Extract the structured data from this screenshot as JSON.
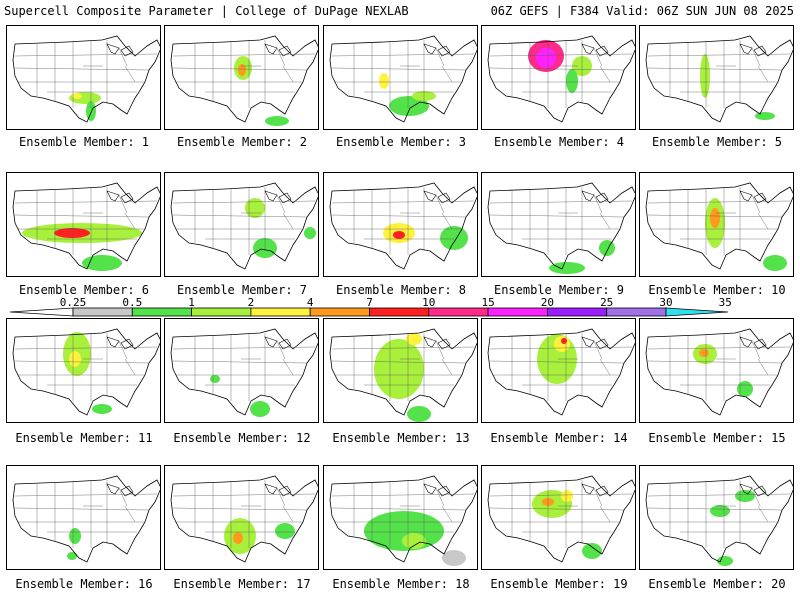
{
  "header": {
    "title_left": "Supercell Composite Parameter | College of DuPage NEXLAB",
    "title_right": "06Z GEFS | F384 Valid: 06Z SUN JUN 08 2025"
  },
  "legend": {
    "thresholds": [
      "0.25",
      "0.5",
      "1",
      "2",
      "4",
      "7",
      "10",
      "15",
      "20",
      "25",
      "30",
      "35"
    ],
    "colors": [
      "#c8c8c8",
      "#54e24a",
      "#a8f03c",
      "#fff23c",
      "#ff9a1e",
      "#ff2020",
      "#ff2a8a",
      "#ff22ff",
      "#9a1eff",
      "#a070e8",
      "#30e0f0"
    ]
  },
  "members": [
    {
      "label": "Ensemble Member: 1",
      "blobs": [
        {
          "cx": 78,
          "cy": 72,
          "rx": 16,
          "ry": 6,
          "c": 2
        },
        {
          "cx": 84,
          "cy": 85,
          "rx": 5,
          "ry": 10,
          "c": 1
        },
        {
          "cx": 70,
          "cy": 70,
          "rx": 5,
          "ry": 3,
          "c": 3
        }
      ]
    },
    {
      "label": "Ensemble Member: 2",
      "blobs": [
        {
          "cx": 78,
          "cy": 42,
          "rx": 9,
          "ry": 12,
          "c": 2
        },
        {
          "cx": 77,
          "cy": 44,
          "rx": 4,
          "ry": 6,
          "c": 4
        },
        {
          "cx": 112,
          "cy": 95,
          "rx": 12,
          "ry": 5,
          "c": 1
        }
      ]
    },
    {
      "label": "Ensemble Member: 3",
      "blobs": [
        {
          "cx": 60,
          "cy": 55,
          "rx": 5,
          "ry": 8,
          "c": 3
        },
        {
          "cx": 85,
          "cy": 80,
          "rx": 20,
          "ry": 10,
          "c": 1
        },
        {
          "cx": 100,
          "cy": 70,
          "rx": 12,
          "ry": 5,
          "c": 2
        }
      ]
    },
    {
      "label": "Ensemble Member: 4",
      "blobs": [
        {
          "cx": 64,
          "cy": 30,
          "rx": 18,
          "ry": 16,
          "c": 6
        },
        {
          "cx": 64,
          "cy": 32,
          "rx": 10,
          "ry": 10,
          "c": 7
        },
        {
          "cx": 100,
          "cy": 40,
          "rx": 10,
          "ry": 10,
          "c": 2
        },
        {
          "cx": 90,
          "cy": 55,
          "rx": 6,
          "ry": 12,
          "c": 1
        }
      ]
    },
    {
      "label": "Ensemble Member: 5",
      "blobs": [
        {
          "cx": 65,
          "cy": 50,
          "rx": 5,
          "ry": 22,
          "c": 2
        },
        {
          "cx": 125,
          "cy": 90,
          "rx": 10,
          "ry": 4,
          "c": 1
        }
      ]
    },
    {
      "label": "Ensemble Member: 6",
      "blobs": [
        {
          "cx": 75,
          "cy": 60,
          "rx": 60,
          "ry": 10,
          "c": 2
        },
        {
          "cx": 65,
          "cy": 60,
          "rx": 18,
          "ry": 5,
          "c": 5
        },
        {
          "cx": 95,
          "cy": 90,
          "rx": 20,
          "ry": 8,
          "c": 1
        }
      ]
    },
    {
      "label": "Ensemble Member: 7",
      "blobs": [
        {
          "cx": 90,
          "cy": 35,
          "rx": 10,
          "ry": 10,
          "c": 2
        },
        {
          "cx": 100,
          "cy": 75,
          "rx": 12,
          "ry": 10,
          "c": 1
        },
        {
          "cx": 145,
          "cy": 60,
          "rx": 6,
          "ry": 6,
          "c": 1
        }
      ]
    },
    {
      "label": "Ensemble Member: 8",
      "blobs": [
        {
          "cx": 75,
          "cy": 60,
          "rx": 16,
          "ry": 10,
          "c": 3
        },
        {
          "cx": 75,
          "cy": 62,
          "rx": 6,
          "ry": 4,
          "c": 5
        },
        {
          "cx": 130,
          "cy": 65,
          "rx": 14,
          "ry": 12,
          "c": 1
        }
      ]
    },
    {
      "label": "Ensemble Member: 9",
      "blobs": [
        {
          "cx": 125,
          "cy": 75,
          "rx": 8,
          "ry": 8,
          "c": 1
        },
        {
          "cx": 85,
          "cy": 95,
          "rx": 18,
          "ry": 6,
          "c": 1
        }
      ]
    },
    {
      "label": "Ensemble Member: 10",
      "blobs": [
        {
          "cx": 75,
          "cy": 50,
          "rx": 10,
          "ry": 25,
          "c": 2
        },
        {
          "cx": 75,
          "cy": 45,
          "rx": 5,
          "ry": 10,
          "c": 4
        },
        {
          "cx": 135,
          "cy": 90,
          "rx": 12,
          "ry": 8,
          "c": 1
        }
      ]
    },
    {
      "label": "Ensemble Member: 11",
      "blobs": [
        {
          "cx": 70,
          "cy": 35,
          "rx": 14,
          "ry": 22,
          "c": 2
        },
        {
          "cx": 68,
          "cy": 40,
          "rx": 6,
          "ry": 8,
          "c": 3
        },
        {
          "cx": 95,
          "cy": 90,
          "rx": 10,
          "ry": 5,
          "c": 1
        }
      ]
    },
    {
      "label": "Ensemble Member: 12",
      "blobs": [
        {
          "cx": 95,
          "cy": 90,
          "rx": 10,
          "ry": 8,
          "c": 1
        },
        {
          "cx": 50,
          "cy": 60,
          "rx": 5,
          "ry": 4,
          "c": 1
        }
      ]
    },
    {
      "label": "Ensemble Member: 13",
      "blobs": [
        {
          "cx": 75,
          "cy": 50,
          "rx": 25,
          "ry": 30,
          "c": 2
        },
        {
          "cx": 90,
          "cy": 20,
          "rx": 8,
          "ry": 6,
          "c": 3
        },
        {
          "cx": 95,
          "cy": 95,
          "rx": 12,
          "ry": 8,
          "c": 1
        }
      ]
    },
    {
      "label": "Ensemble Member: 14",
      "blobs": [
        {
          "cx": 75,
          "cy": 40,
          "rx": 20,
          "ry": 25,
          "c": 2
        },
        {
          "cx": 80,
          "cy": 25,
          "rx": 8,
          "ry": 8,
          "c": 3
        },
        {
          "cx": 82,
          "cy": 22,
          "rx": 3,
          "ry": 3,
          "c": 5
        }
      ]
    },
    {
      "label": "Ensemble Member: 15",
      "blobs": [
        {
          "cx": 65,
          "cy": 35,
          "rx": 12,
          "ry": 10,
          "c": 2
        },
        {
          "cx": 64,
          "cy": 34,
          "rx": 5,
          "ry": 4,
          "c": 4
        },
        {
          "cx": 105,
          "cy": 70,
          "rx": 8,
          "ry": 8,
          "c": 1
        }
      ]
    },
    {
      "label": "Ensemble Member: 16",
      "blobs": [
        {
          "cx": 68,
          "cy": 70,
          "rx": 6,
          "ry": 8,
          "c": 1
        },
        {
          "cx": 65,
          "cy": 90,
          "rx": 5,
          "ry": 4,
          "c": 1
        }
      ]
    },
    {
      "label": "Ensemble Member: 17",
      "blobs": [
        {
          "cx": 75,
          "cy": 70,
          "rx": 16,
          "ry": 18,
          "c": 2
        },
        {
          "cx": 73,
          "cy": 72,
          "rx": 5,
          "ry": 6,
          "c": 4
        },
        {
          "cx": 120,
          "cy": 65,
          "rx": 10,
          "ry": 8,
          "c": 1
        }
      ]
    },
    {
      "label": "Ensemble Member: 18",
      "blobs": [
        {
          "cx": 80,
          "cy": 65,
          "rx": 40,
          "ry": 20,
          "c": 1
        },
        {
          "cx": 90,
          "cy": 75,
          "rx": 12,
          "ry": 8,
          "c": 2
        },
        {
          "cx": 130,
          "cy": 92,
          "rx": 12,
          "ry": 8,
          "c": 0
        }
      ]
    },
    {
      "label": "Ensemble Member: 19",
      "blobs": [
        {
          "cx": 70,
          "cy": 38,
          "rx": 20,
          "ry": 14,
          "c": 2
        },
        {
          "cx": 66,
          "cy": 36,
          "rx": 6,
          "ry": 4,
          "c": 4
        },
        {
          "cx": 85,
          "cy": 30,
          "rx": 6,
          "ry": 6,
          "c": 3
        },
        {
          "cx": 110,
          "cy": 85,
          "rx": 10,
          "ry": 8,
          "c": 1
        }
      ]
    },
    {
      "label": "Ensemble Member: 20",
      "blobs": [
        {
          "cx": 80,
          "cy": 45,
          "rx": 10,
          "ry": 6,
          "c": 1
        },
        {
          "cx": 105,
          "cy": 30,
          "rx": 10,
          "ry": 6,
          "c": 1
        },
        {
          "cx": 85,
          "cy": 95,
          "rx": 8,
          "ry": 5,
          "c": 1
        }
      ]
    }
  ]
}
